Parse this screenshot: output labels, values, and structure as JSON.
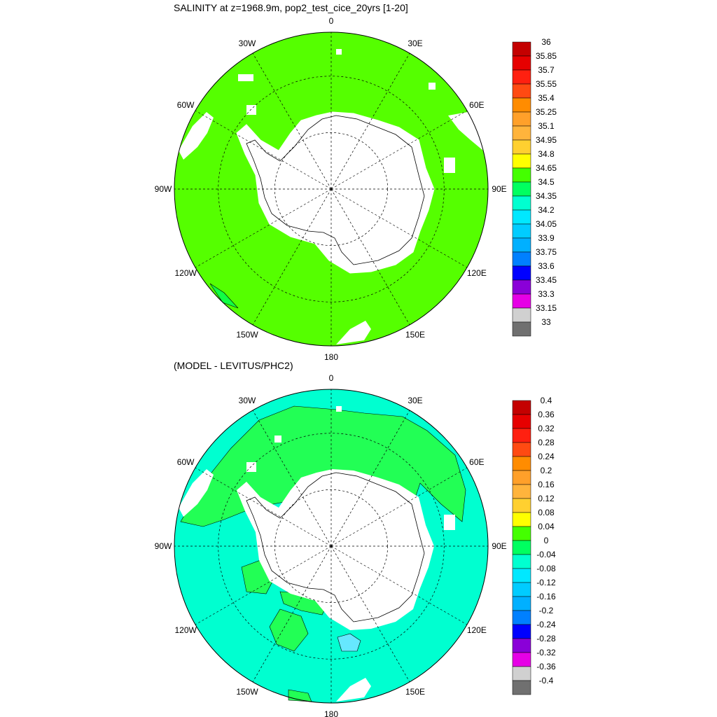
{
  "panels": [
    {
      "title": "SALINITY at z=1968.9m, pop2_test_cice_20yrs [1-20]",
      "colorbar": {
        "labels": [
          "36",
          "35.85",
          "35.7",
          "35.55",
          "35.4",
          "35.25",
          "35.1",
          "34.95",
          "34.8",
          "34.65",
          "34.5",
          "34.35",
          "34.2",
          "34.05",
          "33.9",
          "33.75",
          "33.6",
          "33.45",
          "33.3",
          "33.15",
          "33"
        ],
        "colors": [
          "#c40000",
          "#e60000",
          "#ff2010",
          "#ff4a12",
          "#ff8c00",
          "#ffa02a",
          "#ffb43c",
          "#ffd030",
          "#ffff00",
          "#44ff00",
          "#00ff60",
          "#00ffd0",
          "#00e8ff",
          "#00ccff",
          "#00b0ff",
          "#0080ff",
          "#0000ff",
          "#8a00d8",
          "#e600e6",
          "#d0d0d0",
          "#707070"
        ]
      },
      "dominant_color": "#55ff00",
      "secondary_color": "#11ff44"
    },
    {
      "title": "(MODEL - LEVITUS/PHC2)",
      "colorbar": {
        "labels": [
          "0.4",
          "0.36",
          "0.32",
          "0.28",
          "0.24",
          "0.2",
          "0.16",
          "0.12",
          "0.08",
          "0.04",
          "0",
          "-0.04",
          "-0.08",
          "-0.12",
          "-0.16",
          "-0.2",
          "-0.24",
          "-0.28",
          "-0.32",
          "-0.36",
          "-0.4"
        ],
        "colors": [
          "#c40000",
          "#e60000",
          "#ff2010",
          "#ff4a12",
          "#ff8c00",
          "#ffa02a",
          "#ffb43c",
          "#ffd030",
          "#ffff00",
          "#44ff00",
          "#00ff60",
          "#00ffd0",
          "#00e8ff",
          "#00ccff",
          "#00b0ff",
          "#0080ff",
          "#0000ff",
          "#8a00d8",
          "#e600e6",
          "#d0d0d0",
          "#707070"
        ]
      },
      "dominant_color": "#00ffd0",
      "secondary_color": "#22ff55"
    }
  ],
  "map_labels": {
    "lon_0": "0",
    "lon_30e": "30E",
    "lon_60e": "60E",
    "lon_90e": "90E",
    "lon_120e": "120E",
    "lon_150e": "150E",
    "lon_180": "180",
    "lon_150w": "150W",
    "lon_120w": "120W",
    "lon_90w": "90W",
    "lon_60w": "60W",
    "lon_30w": "30W"
  }
}
